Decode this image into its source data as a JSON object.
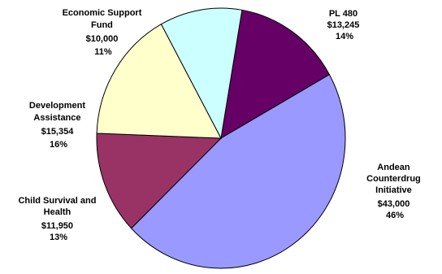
{
  "chart_data": {
    "type": "pie",
    "slices": [
      {
        "name": "PL 480",
        "label_lines": [
          "PL 480"
        ],
        "value_label": "$13,245",
        "value": 13245,
        "percent_label": "14%",
        "color": "#660066"
      },
      {
        "name": "Andean Counterdrug Initiative",
        "label_lines": [
          "Andean",
          "Counterdrug",
          "Initiative"
        ],
        "value_label": "$43,000",
        "value": 43000,
        "percent_label": "46%",
        "color": "#9999ff"
      },
      {
        "name": "Child Survival and Health",
        "label_lines": [
          "Child Survival and",
          "Health"
        ],
        "value_label": "$11,950",
        "value": 11950,
        "percent_label": "13%",
        "color": "#993366"
      },
      {
        "name": "Development Assistance",
        "label_lines": [
          "Development",
          "Assistance"
        ],
        "value_label": "$15,354",
        "value": 15354,
        "percent_label": "16%",
        "color": "#ffffcc"
      },
      {
        "name": "Economic Support Fund",
        "label_lines": [
          "Economic Support",
          "Fund"
        ],
        "value_label": "$10,000",
        "value": 10000,
        "percent_label": "11%",
        "color": "#ccffff"
      }
    ]
  }
}
